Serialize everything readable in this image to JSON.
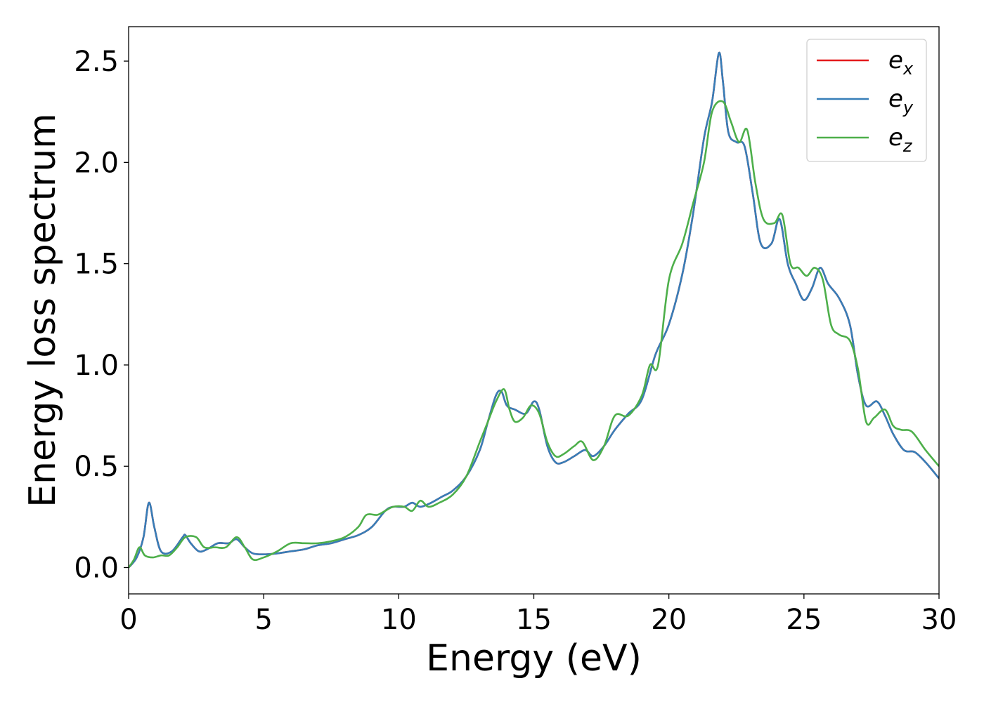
{
  "chart_data": {
    "type": "line",
    "title": "",
    "xlabel": "Energy (eV)",
    "ylabel": "Energy loss spectrum",
    "xlim": [
      0,
      30
    ],
    "ylim": [
      -0.13,
      2.67
    ],
    "xticks": [
      0,
      5,
      10,
      15,
      20,
      25,
      30
    ],
    "yticks": [
      0.0,
      0.5,
      1.0,
      1.5,
      2.0,
      2.5
    ],
    "xtick_labels": [
      "0",
      "5",
      "10",
      "15",
      "20",
      "25",
      "30"
    ],
    "ytick_labels": [
      "0.0",
      "0.5",
      "1.0",
      "1.5",
      "2.0",
      "2.5"
    ],
    "grid": false,
    "legend_position": "top-right",
    "series": [
      {
        "name": "e_x",
        "legend_base": "e",
        "legend_sub": "x",
        "color": "#e41a1c",
        "x": [
          0,
          0.3,
          0.55,
          0.75,
          0.95,
          1.2,
          1.6,
          2.0,
          2.1,
          2.3,
          2.6,
          2.9,
          3.3,
          3.7,
          4.0,
          4.3,
          4.6,
          5.0,
          5.5,
          6.0,
          6.5,
          7.0,
          7.5,
          8.0,
          8.5,
          9.0,
          9.5,
          9.8,
          10.2,
          10.5,
          10.8,
          11.2,
          11.6,
          12.0,
          12.5,
          13.0,
          13.3,
          13.6,
          13.8,
          14.0,
          14.3,
          14.7,
          15.0,
          15.2,
          15.5,
          15.8,
          16.1,
          16.5,
          16.9,
          17.2,
          17.6,
          18.0,
          18.5,
          19.0,
          19.5,
          20.0,
          20.5,
          20.9,
          21.3,
          21.6,
          21.85,
          22.0,
          22.2,
          22.5,
          22.8,
          23.1,
          23.4,
          23.8,
          24.1,
          24.4,
          24.7,
          25.0,
          25.3,
          25.6,
          25.9,
          26.3,
          26.7,
          27.0,
          27.3,
          27.7,
          28.0,
          28.3,
          28.7,
          29.1,
          29.5,
          30.0
        ],
        "y": [
          0.0,
          0.05,
          0.15,
          0.32,
          0.2,
          0.08,
          0.08,
          0.15,
          0.16,
          0.12,
          0.08,
          0.09,
          0.12,
          0.12,
          0.14,
          0.1,
          0.07,
          0.065,
          0.07,
          0.08,
          0.09,
          0.11,
          0.12,
          0.14,
          0.16,
          0.2,
          0.28,
          0.3,
          0.3,
          0.32,
          0.3,
          0.32,
          0.35,
          0.38,
          0.45,
          0.58,
          0.72,
          0.85,
          0.87,
          0.8,
          0.78,
          0.76,
          0.82,
          0.78,
          0.6,
          0.52,
          0.52,
          0.55,
          0.58,
          0.55,
          0.6,
          0.68,
          0.76,
          0.83,
          1.05,
          1.2,
          1.45,
          1.75,
          2.12,
          2.3,
          2.54,
          2.4,
          2.15,
          2.1,
          2.08,
          1.85,
          1.6,
          1.6,
          1.72,
          1.5,
          1.4,
          1.32,
          1.38,
          1.48,
          1.4,
          1.33,
          1.2,
          0.95,
          0.8,
          0.82,
          0.75,
          0.66,
          0.58,
          0.57,
          0.52,
          0.44
        ]
      },
      {
        "name": "e_y",
        "legend_base": "e",
        "legend_sub": "y",
        "color": "#377eb8",
        "x": [
          0,
          0.3,
          0.55,
          0.75,
          0.95,
          1.2,
          1.6,
          2.0,
          2.1,
          2.3,
          2.6,
          2.9,
          3.3,
          3.7,
          4.0,
          4.3,
          4.6,
          5.0,
          5.5,
          6.0,
          6.5,
          7.0,
          7.5,
          8.0,
          8.5,
          9.0,
          9.5,
          9.8,
          10.2,
          10.5,
          10.8,
          11.2,
          11.6,
          12.0,
          12.5,
          13.0,
          13.3,
          13.6,
          13.8,
          14.0,
          14.3,
          14.7,
          15.0,
          15.2,
          15.5,
          15.8,
          16.1,
          16.5,
          16.9,
          17.2,
          17.6,
          18.0,
          18.5,
          19.0,
          19.5,
          20.0,
          20.5,
          20.9,
          21.3,
          21.6,
          21.85,
          22.0,
          22.2,
          22.5,
          22.8,
          23.1,
          23.4,
          23.8,
          24.1,
          24.4,
          24.7,
          25.0,
          25.3,
          25.6,
          25.9,
          26.3,
          26.7,
          27.0,
          27.3,
          27.7,
          28.0,
          28.3,
          28.7,
          29.1,
          29.5,
          30.0
        ],
        "y": [
          0.0,
          0.05,
          0.15,
          0.32,
          0.2,
          0.08,
          0.08,
          0.15,
          0.16,
          0.12,
          0.08,
          0.09,
          0.12,
          0.12,
          0.14,
          0.1,
          0.07,
          0.065,
          0.07,
          0.08,
          0.09,
          0.11,
          0.12,
          0.14,
          0.16,
          0.2,
          0.28,
          0.3,
          0.3,
          0.32,
          0.3,
          0.32,
          0.35,
          0.38,
          0.45,
          0.58,
          0.72,
          0.85,
          0.87,
          0.8,
          0.78,
          0.76,
          0.82,
          0.78,
          0.6,
          0.52,
          0.52,
          0.55,
          0.58,
          0.55,
          0.6,
          0.68,
          0.76,
          0.83,
          1.05,
          1.2,
          1.45,
          1.75,
          2.12,
          2.3,
          2.54,
          2.4,
          2.15,
          2.1,
          2.08,
          1.85,
          1.6,
          1.6,
          1.72,
          1.5,
          1.4,
          1.32,
          1.38,
          1.48,
          1.4,
          1.33,
          1.2,
          0.95,
          0.8,
          0.82,
          0.75,
          0.66,
          0.58,
          0.57,
          0.52,
          0.44
        ]
      },
      {
        "name": "e_z",
        "legend_base": "e",
        "legend_sub": "z",
        "color": "#4daf4a",
        "x": [
          0,
          0.2,
          0.4,
          0.6,
          0.9,
          1.2,
          1.5,
          1.8,
          2.1,
          2.5,
          2.8,
          3.2,
          3.6,
          4.0,
          4.3,
          4.6,
          5.0,
          5.5,
          6.0,
          6.5,
          7.0,
          7.5,
          8.0,
          8.5,
          8.8,
          9.2,
          9.5,
          9.8,
          10.2,
          10.5,
          10.8,
          11.1,
          11.5,
          12.0,
          12.5,
          13.0,
          13.3,
          13.6,
          13.9,
          14.1,
          14.3,
          14.6,
          14.9,
          15.2,
          15.5,
          15.8,
          16.1,
          16.5,
          16.8,
          17.2,
          17.6,
          18.0,
          18.5,
          19.0,
          19.3,
          19.6,
          20.0,
          20.5,
          20.9,
          21.3,
          21.6,
          22.0,
          22.3,
          22.6,
          22.9,
          23.2,
          23.5,
          23.9,
          24.2,
          24.5,
          24.8,
          25.1,
          25.4,
          25.7,
          26.0,
          26.3,
          26.7,
          27.0,
          27.3,
          27.6,
          28.0,
          28.3,
          28.6,
          29.0,
          29.5,
          30.0
        ],
        "y": [
          0.0,
          0.04,
          0.1,
          0.06,
          0.05,
          0.06,
          0.06,
          0.1,
          0.15,
          0.15,
          0.1,
          0.1,
          0.1,
          0.15,
          0.1,
          0.04,
          0.05,
          0.08,
          0.12,
          0.12,
          0.12,
          0.13,
          0.15,
          0.2,
          0.26,
          0.26,
          0.28,
          0.3,
          0.3,
          0.28,
          0.33,
          0.3,
          0.32,
          0.36,
          0.45,
          0.62,
          0.72,
          0.82,
          0.88,
          0.78,
          0.72,
          0.74,
          0.8,
          0.76,
          0.62,
          0.55,
          0.56,
          0.6,
          0.62,
          0.53,
          0.6,
          0.75,
          0.75,
          0.85,
          1.0,
          1.0,
          1.42,
          1.6,
          1.8,
          2.0,
          2.25,
          2.3,
          2.2,
          2.1,
          2.16,
          1.9,
          1.72,
          1.7,
          1.74,
          1.5,
          1.48,
          1.44,
          1.48,
          1.42,
          1.2,
          1.15,
          1.12,
          0.98,
          0.72,
          0.74,
          0.78,
          0.7,
          0.68,
          0.67,
          0.58,
          0.5
        ]
      }
    ]
  }
}
